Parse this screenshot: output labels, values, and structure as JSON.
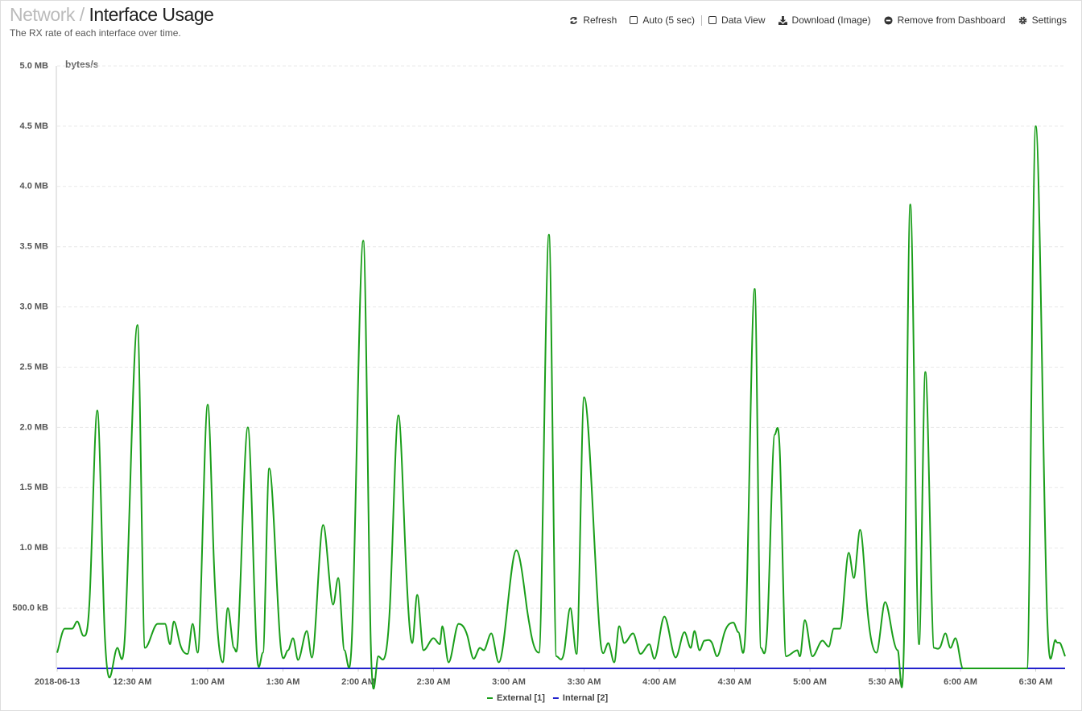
{
  "header": {
    "breadcrumb": "Network",
    "separator": "/",
    "title": "Interface Usage",
    "subtitle": "The RX rate of each interface over time."
  },
  "toolbar": [
    "Refresh",
    "Auto (5 sec)",
    "Data View",
    "Download (Image)",
    "Remove from Dashboard",
    "Settings"
  ],
  "chart_data": {
    "type": "line",
    "y_label": "bytes/s",
    "xlim": [
      0,
      401.7
    ],
    "ylim": [
      0,
      5000000
    ],
    "xticks": [
      {
        "value": 0,
        "label": "2018-06-13"
      },
      {
        "value": 30,
        "label": "12:30 AM"
      },
      {
        "value": 60,
        "label": "1:00 AM"
      },
      {
        "value": 90,
        "label": "1:30 AM"
      },
      {
        "value": 120,
        "label": "2:00 AM"
      },
      {
        "value": 150,
        "label": "2:30 AM"
      },
      {
        "value": 180,
        "label": "3:00 AM"
      },
      {
        "value": 210,
        "label": "3:30 AM"
      },
      {
        "value": 240,
        "label": "4:00 AM"
      },
      {
        "value": 270,
        "label": "4:30 AM"
      },
      {
        "value": 300,
        "label": "5:00 AM"
      },
      {
        "value": 330,
        "label": "5:30 AM"
      },
      {
        "value": 360,
        "label": "6:00 AM"
      },
      {
        "value": 390,
        "label": "6:30 AM"
      }
    ],
    "yticks": [
      {
        "value": 500000,
        "label": "500.0 kB"
      },
      {
        "value": 1000000,
        "label": "1.0 MB"
      },
      {
        "value": 1500000,
        "label": "1.5 MB"
      },
      {
        "value": 2000000,
        "label": "2.0 MB"
      },
      {
        "value": 2500000,
        "label": "2.5 MB"
      },
      {
        "value": 3000000,
        "label": "3.0 MB"
      },
      {
        "value": 3500000,
        "label": "3.5 MB"
      },
      {
        "value": 4000000,
        "label": "4.0 MB"
      },
      {
        "value": 4500000,
        "label": "4.5 MB"
      },
      {
        "value": 5000000,
        "label": "5.0 MB"
      }
    ],
    "grid": true,
    "series": [
      {
        "name": "External [1]",
        "color": "#1a9e1a",
        "x": [
          0,
          3,
          6,
          8,
          10.5,
          13,
          16,
          19,
          24,
          27,
          32,
          35,
          40,
          43,
          45,
          46.5,
          49,
          52,
          54,
          56,
          60,
          62.5,
          66,
          68,
          70.5,
          72,
          76,
          79.5,
          82,
          84.5,
          89,
          92,
          94,
          96,
          99.5,
          101.5,
          106,
          110,
          112,
          114.5,
          117.5,
          122,
          125,
          128,
          132.5,
          136,
          139,
          141.5,
          143.5,
          146,
          150,
          152.5,
          153.5,
          156,
          160,
          163.5,
          166,
          168.5,
          170,
          173,
          176,
          183,
          187,
          188.5,
          192,
          196,
          199,
          202,
          204.5,
          207,
          210,
          216.5,
          220,
          222,
          224,
          226,
          229.5,
          232.5,
          236,
          238,
          242,
          246.5,
          250,
          252.5,
          254,
          256,
          258,
          261,
          263,
          266,
          269.5,
          271.5,
          274.5,
          278,
          280.5,
          283,
          286,
          288,
          290.5,
          295,
          296,
          298,
          301,
          305,
          307.5,
          309.5,
          312,
          315.5,
          317.5,
          320,
          323,
          326.5,
          330,
          333,
          335,
          337.5,
          340,
          343.5,
          346,
          349.5,
          352,
          354,
          356,
          358,
          361,
          386.5,
          390,
          394.5,
          398,
          400,
          401.7
        ],
        "values": [
          130000,
          330000,
          330000,
          390000,
          270000,
          600000,
          2140000,
          270000,
          170000,
          270000,
          2850000,
          170000,
          370000,
          370000,
          200000,
          390000,
          200000,
          120000,
          370000,
          130000,
          2190000,
          870000,
          50000,
          500000,
          170000,
          230000,
          2000000,
          150000,
          130000,
          1660000,
          200000,
          150000,
          250000,
          70000,
          310000,
          90000,
          1190000,
          530000,
          750000,
          150000,
          270000,
          3550000,
          200000,
          100000,
          470000,
          2100000,
          870000,
          210000,
          610000,
          150000,
          250000,
          200000,
          350000,
          50000,
          370000,
          270000,
          80000,
          170000,
          150000,
          290000,
          50000,
          980000,
          530000,
          330000,
          130000,
          3600000,
          100000,
          130000,
          500000,
          120000,
          2250000,
          230000,
          200000,
          50000,
          350000,
          210000,
          290000,
          120000,
          200000,
          80000,
          430000,
          90000,
          300000,
          170000,
          310000,
          150000,
          230000,
          210000,
          100000,
          300000,
          380000,
          300000,
          400000,
          3150000,
          170000,
          330000,
          1940000,
          1800000,
          100000,
          150000,
          100000,
          400000,
          100000,
          230000,
          180000,
          330000,
          330000,
          960000,
          750000,
          1150000,
          470000,
          130000,
          550000,
          270000,
          150000,
          230000,
          3850000,
          200000,
          2460000,
          170000,
          180000,
          290000,
          170000,
          250000,
          0,
          0,
          4500000,
          470000,
          230000,
          200000,
          100000
        ]
      },
      {
        "name": "Internal [2]",
        "color": "#2222cc",
        "x": [
          0,
          401.7
        ],
        "values": [
          0,
          0
        ]
      }
    ]
  }
}
